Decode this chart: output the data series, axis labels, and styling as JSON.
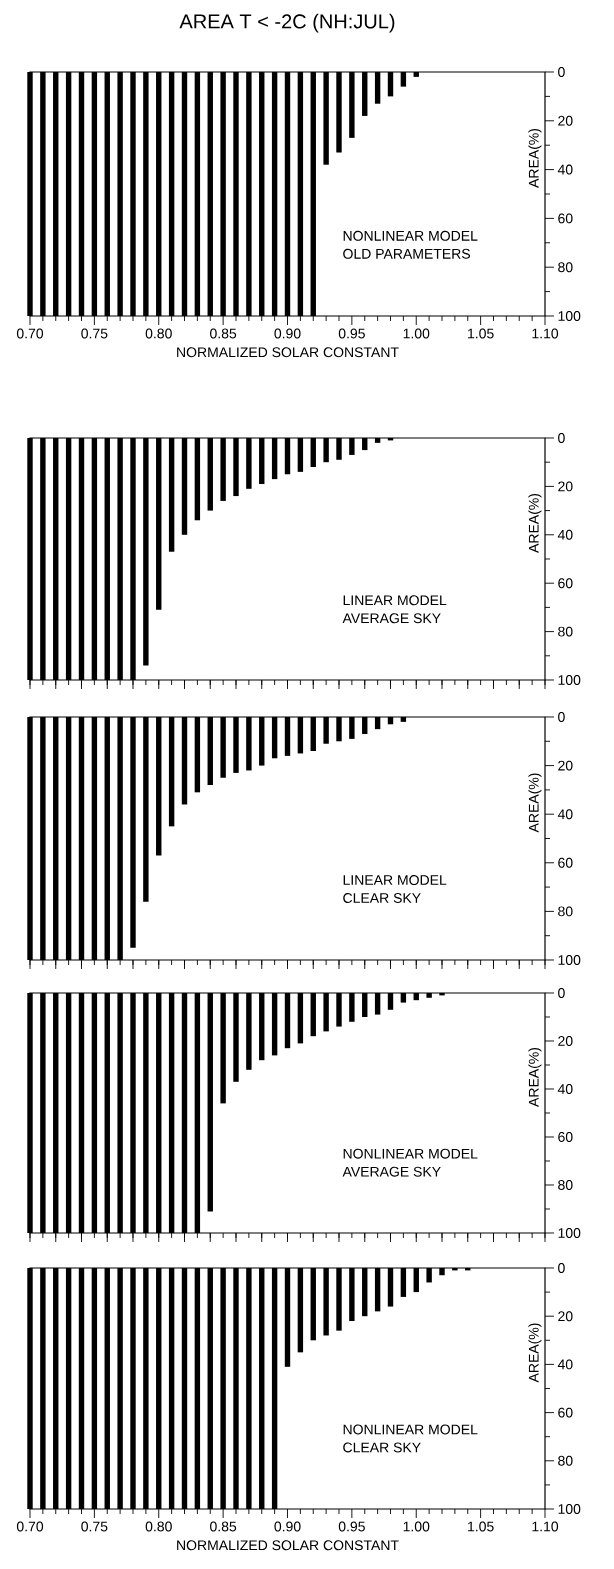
{
  "chart_data": [
    {
      "type": "bar",
      "title": "AREA T < -2C (NH:JUL)",
      "xlabel": "NORMALIZED SOLAR CONSTANT",
      "ylabel": "AREA(%)",
      "color": "#000000",
      "x": [
        0.7,
        0.71,
        0.72,
        0.73,
        0.74,
        0.75,
        0.76,
        0.77,
        0.78,
        0.79,
        0.8,
        0.81,
        0.82,
        0.83,
        0.84,
        0.85,
        0.86,
        0.87,
        0.88,
        0.89,
        0.9,
        0.91,
        0.92,
        0.93,
        0.94,
        0.95,
        0.96,
        0.97,
        0.98,
        0.99,
        1.0
      ],
      "values": [
        100,
        100,
        100,
        100,
        100,
        100,
        100,
        100,
        100,
        100,
        100,
        100,
        100,
        100,
        100,
        100,
        100,
        100,
        100,
        100,
        100,
        100,
        100,
        38,
        33,
        27,
        18,
        13,
        10,
        6,
        2
      ],
      "xlim": [
        0.7,
        1.1
      ],
      "ylim": [
        100,
        0
      ],
      "xticks": [
        {
          "value": 0.7,
          "label": "0.70"
        },
        {
          "value": 0.71,
          "label": null
        },
        {
          "value": 0.72,
          "label": null
        },
        {
          "value": 0.73,
          "label": null
        },
        {
          "value": 0.74,
          "label": null
        },
        {
          "value": 0.75,
          "label": "0.75"
        },
        {
          "value": 0.76,
          "label": null
        },
        {
          "value": 0.77,
          "label": null
        },
        {
          "value": 0.78,
          "label": null
        },
        {
          "value": 0.79,
          "label": null
        },
        {
          "value": 0.8,
          "label": "0.80"
        },
        {
          "value": 0.81,
          "label": null
        },
        {
          "value": 0.82,
          "label": null
        },
        {
          "value": 0.83,
          "label": null
        },
        {
          "value": 0.84,
          "label": null
        },
        {
          "value": 0.85,
          "label": "0.85"
        },
        {
          "value": 0.86,
          "label": null
        },
        {
          "value": 0.87,
          "label": null
        },
        {
          "value": 0.88,
          "label": null
        },
        {
          "value": 0.89,
          "label": null
        },
        {
          "value": 0.9,
          "label": "0.90"
        },
        {
          "value": 0.91,
          "label": null
        },
        {
          "value": 0.92,
          "label": null
        },
        {
          "value": 0.93,
          "label": null
        },
        {
          "value": 0.94,
          "label": null
        },
        {
          "value": 0.95,
          "label": "0.95"
        },
        {
          "value": 0.96,
          "label": null
        },
        {
          "value": 0.97,
          "label": null
        },
        {
          "value": 0.98,
          "label": null
        },
        {
          "value": 0.99,
          "label": null
        },
        {
          "value": 1.0,
          "label": "1.00"
        },
        {
          "value": 1.01,
          "label": null
        },
        {
          "value": 1.02,
          "label": null
        },
        {
          "value": 1.03,
          "label": null
        },
        {
          "value": 1.04,
          "label": null
        },
        {
          "value": 1.05,
          "label": "1.05"
        },
        {
          "value": 1.06,
          "label": null
        },
        {
          "value": 1.07,
          "label": null
        },
        {
          "value": 1.08,
          "label": null
        },
        {
          "value": 1.09,
          "label": null
        },
        {
          "value": 1.1,
          "label": "1.10"
        }
      ],
      "yticks": [
        0,
        {
          "value": 10,
          "label": null
        },
        20,
        {
          "value": 30,
          "label": null
        },
        40,
        {
          "value": 50,
          "label": null
        },
        60,
        {
          "value": 70,
          "label": null
        },
        80,
        {
          "value": 90,
          "label": null
        },
        100
      ],
      "annotations": [
        "NONLINEAR MODEL",
        "OLD PARAMETERS"
      ]
    },
    {
      "type": "bar",
      "ylabel": "AREA(%)",
      "color": "#000000",
      "tick_labels": "y",
      "x": [
        0.7,
        0.71,
        0.72,
        0.73,
        0.74,
        0.75,
        0.76,
        0.77,
        0.78,
        0.79,
        0.8,
        0.81,
        0.82,
        0.83,
        0.84,
        0.85,
        0.86,
        0.87,
        0.88,
        0.89,
        0.9,
        0.91,
        0.92,
        0.93,
        0.94,
        0.95,
        0.96,
        0.97,
        0.98
      ],
      "values": [
        100,
        100,
        100,
        100,
        100,
        100,
        100,
        100,
        100,
        94,
        71,
        47,
        40,
        34,
        30,
        26,
        24,
        21,
        19,
        17,
        15,
        14,
        12,
        10,
        9,
        7,
        5,
        2,
        1
      ],
      "xlim": [
        0.7,
        1.1
      ],
      "ylim": [
        100,
        0
      ],
      "xticks": [
        {
          "value": 0.7,
          "label": null
        },
        {
          "value": 0.71,
          "label": null
        },
        {
          "value": 0.72,
          "label": null
        },
        {
          "value": 0.73,
          "label": null
        },
        {
          "value": 0.74,
          "label": null
        },
        {
          "value": 0.75,
          "label": null
        },
        {
          "value": 0.76,
          "label": null
        },
        {
          "value": 0.77,
          "label": null
        },
        {
          "value": 0.78,
          "label": null
        },
        {
          "value": 0.79,
          "label": null
        },
        {
          "value": 0.8,
          "label": null
        },
        {
          "value": 0.81,
          "label": null
        },
        {
          "value": 0.82,
          "label": null
        },
        {
          "value": 0.83,
          "label": null
        },
        {
          "value": 0.84,
          "label": null
        },
        {
          "value": 0.85,
          "label": null
        },
        {
          "value": 0.86,
          "label": null
        },
        {
          "value": 0.87,
          "label": null
        },
        {
          "value": 0.88,
          "label": null
        },
        {
          "value": 0.89,
          "label": null
        },
        {
          "value": 0.9,
          "label": null
        },
        {
          "value": 0.91,
          "label": null
        },
        {
          "value": 0.92,
          "label": null
        },
        {
          "value": 0.93,
          "label": null
        },
        {
          "value": 0.94,
          "label": null
        },
        {
          "value": 0.95,
          "label": null
        },
        {
          "value": 0.96,
          "label": null
        },
        {
          "value": 0.97,
          "label": null
        },
        {
          "value": 0.98,
          "label": null
        },
        {
          "value": 0.99,
          "label": null
        },
        {
          "value": 1.0,
          "label": null
        },
        {
          "value": 1.01,
          "label": null
        },
        {
          "value": 1.02,
          "label": null
        },
        {
          "value": 1.03,
          "label": null
        },
        {
          "value": 1.04,
          "label": null
        },
        {
          "value": 1.05,
          "label": null
        },
        {
          "value": 1.06,
          "label": null
        },
        {
          "value": 1.07,
          "label": null
        },
        {
          "value": 1.08,
          "label": null
        },
        {
          "value": 1.09,
          "label": null
        },
        {
          "value": 1.1,
          "label": null
        }
      ],
      "yticks": [
        0,
        {
          "value": 10,
          "label": null
        },
        20,
        {
          "value": 30,
          "label": null
        },
        40,
        {
          "value": 50,
          "label": null
        },
        60,
        {
          "value": 70,
          "label": null
        },
        80,
        {
          "value": 90,
          "label": null
        },
        100
      ],
      "annotations": [
        "LINEAR MODEL",
        "AVERAGE SKY"
      ]
    },
    {
      "type": "bar",
      "ylabel": "AREA(%)",
      "color": "#000000",
      "tick_labels": "y",
      "x": [
        0.7,
        0.71,
        0.72,
        0.73,
        0.74,
        0.75,
        0.76,
        0.77,
        0.78,
        0.79,
        0.8,
        0.81,
        0.82,
        0.83,
        0.84,
        0.85,
        0.86,
        0.87,
        0.88,
        0.89,
        0.9,
        0.91,
        0.92,
        0.93,
        0.94,
        0.95,
        0.96,
        0.97,
        0.98,
        0.99
      ],
      "values": [
        100,
        100,
        100,
        100,
        100,
        100,
        100,
        100,
        95,
        76,
        57,
        45,
        36,
        31,
        28,
        25,
        23,
        22,
        20,
        17,
        16,
        15,
        14,
        11,
        10,
        9,
        7,
        5,
        3,
        2
      ],
      "xlim": [
        0.7,
        1.1
      ],
      "ylim": [
        100,
        0
      ],
      "xticks": [
        {
          "value": 0.7,
          "label": null
        },
        {
          "value": 0.71,
          "label": null
        },
        {
          "value": 0.72,
          "label": null
        },
        {
          "value": 0.73,
          "label": null
        },
        {
          "value": 0.74,
          "label": null
        },
        {
          "value": 0.75,
          "label": null
        },
        {
          "value": 0.76,
          "label": null
        },
        {
          "value": 0.77,
          "label": null
        },
        {
          "value": 0.78,
          "label": null
        },
        {
          "value": 0.79,
          "label": null
        },
        {
          "value": 0.8,
          "label": null
        },
        {
          "value": 0.81,
          "label": null
        },
        {
          "value": 0.82,
          "label": null
        },
        {
          "value": 0.83,
          "label": null
        },
        {
          "value": 0.84,
          "label": null
        },
        {
          "value": 0.85,
          "label": null
        },
        {
          "value": 0.86,
          "label": null
        },
        {
          "value": 0.87,
          "label": null
        },
        {
          "value": 0.88,
          "label": null
        },
        {
          "value": 0.89,
          "label": null
        },
        {
          "value": 0.9,
          "label": null
        },
        {
          "value": 0.91,
          "label": null
        },
        {
          "value": 0.92,
          "label": null
        },
        {
          "value": 0.93,
          "label": null
        },
        {
          "value": 0.94,
          "label": null
        },
        {
          "value": 0.95,
          "label": null
        },
        {
          "value": 0.96,
          "label": null
        },
        {
          "value": 0.97,
          "label": null
        },
        {
          "value": 0.98,
          "label": null
        },
        {
          "value": 0.99,
          "label": null
        },
        {
          "value": 1.0,
          "label": null
        },
        {
          "value": 1.01,
          "label": null
        },
        {
          "value": 1.02,
          "label": null
        },
        {
          "value": 1.03,
          "label": null
        },
        {
          "value": 1.04,
          "label": null
        },
        {
          "value": 1.05,
          "label": null
        },
        {
          "value": 1.06,
          "label": null
        },
        {
          "value": 1.07,
          "label": null
        },
        {
          "value": 1.08,
          "label": null
        },
        {
          "value": 1.09,
          "label": null
        },
        {
          "value": 1.1,
          "label": null
        }
      ],
      "yticks": [
        0,
        {
          "value": 10,
          "label": null
        },
        20,
        {
          "value": 30,
          "label": null
        },
        40,
        {
          "value": 50,
          "label": null
        },
        60,
        {
          "value": 70,
          "label": null
        },
        80,
        {
          "value": 90,
          "label": null
        },
        100
      ],
      "annotations": [
        "LINEAR MODEL",
        "CLEAR SKY"
      ]
    },
    {
      "type": "bar",
      "ylabel": "AREA(%)",
      "color": "#000000",
      "tick_labels": "y",
      "x": [
        0.7,
        0.71,
        0.72,
        0.73,
        0.74,
        0.75,
        0.76,
        0.77,
        0.78,
        0.79,
        0.8,
        0.81,
        0.82,
        0.83,
        0.84,
        0.85,
        0.86,
        0.87,
        0.88,
        0.89,
        0.9,
        0.91,
        0.92,
        0.93,
        0.94,
        0.95,
        0.96,
        0.97,
        0.98,
        0.99,
        1.0,
        1.01,
        1.02
      ],
      "values": [
        100,
        100,
        100,
        100,
        100,
        100,
        100,
        100,
        100,
        100,
        100,
        100,
        100,
        100,
        91,
        46,
        37,
        32,
        28,
        26,
        23,
        21,
        18,
        16,
        14,
        12,
        10,
        9,
        7,
        4,
        3,
        2,
        1
      ],
      "xlim": [
        0.7,
        1.1
      ],
      "ylim": [
        100,
        0
      ],
      "xticks": [
        {
          "value": 0.7,
          "label": null
        },
        {
          "value": 0.71,
          "label": null
        },
        {
          "value": 0.72,
          "label": null
        },
        {
          "value": 0.73,
          "label": null
        },
        {
          "value": 0.74,
          "label": null
        },
        {
          "value": 0.75,
          "label": null
        },
        {
          "value": 0.76,
          "label": null
        },
        {
          "value": 0.77,
          "label": null
        },
        {
          "value": 0.78,
          "label": null
        },
        {
          "value": 0.79,
          "label": null
        },
        {
          "value": 0.8,
          "label": null
        },
        {
          "value": 0.81,
          "label": null
        },
        {
          "value": 0.82,
          "label": null
        },
        {
          "value": 0.83,
          "label": null
        },
        {
          "value": 0.84,
          "label": null
        },
        {
          "value": 0.85,
          "label": null
        },
        {
          "value": 0.86,
          "label": null
        },
        {
          "value": 0.87,
          "label": null
        },
        {
          "value": 0.88,
          "label": null
        },
        {
          "value": 0.89,
          "label": null
        },
        {
          "value": 0.9,
          "label": null
        },
        {
          "value": 0.91,
          "label": null
        },
        {
          "value": 0.92,
          "label": null
        },
        {
          "value": 0.93,
          "label": null
        },
        {
          "value": 0.94,
          "label": null
        },
        {
          "value": 0.95,
          "label": null
        },
        {
          "value": 0.96,
          "label": null
        },
        {
          "value": 0.97,
          "label": null
        },
        {
          "value": 0.98,
          "label": null
        },
        {
          "value": 0.99,
          "label": null
        },
        {
          "value": 1.0,
          "label": null
        },
        {
          "value": 1.01,
          "label": null
        },
        {
          "value": 1.02,
          "label": null
        },
        {
          "value": 1.03,
          "label": null
        },
        {
          "value": 1.04,
          "label": null
        },
        {
          "value": 1.05,
          "label": null
        },
        {
          "value": 1.06,
          "label": null
        },
        {
          "value": 1.07,
          "label": null
        },
        {
          "value": 1.08,
          "label": null
        },
        {
          "value": 1.09,
          "label": null
        },
        {
          "value": 1.1,
          "label": null
        }
      ],
      "yticks": [
        0,
        {
          "value": 10,
          "label": null
        },
        20,
        {
          "value": 30,
          "label": null
        },
        40,
        {
          "value": 50,
          "label": null
        },
        60,
        {
          "value": 70,
          "label": null
        },
        80,
        {
          "value": 90,
          "label": null
        },
        100
      ],
      "annotations": [
        "NONLINEAR MODEL",
        "AVERAGE SKY"
      ]
    },
    {
      "type": "bar",
      "xlabel": "NORMALIZED SOLAR CONSTANT",
      "ylabel": "AREA(%)",
      "color": "#000000",
      "x": [
        0.7,
        0.71,
        0.72,
        0.73,
        0.74,
        0.75,
        0.76,
        0.77,
        0.78,
        0.79,
        0.8,
        0.81,
        0.82,
        0.83,
        0.84,
        0.85,
        0.86,
        0.87,
        0.88,
        0.89,
        0.9,
        0.91,
        0.92,
        0.93,
        0.94,
        0.95,
        0.96,
        0.97,
        0.98,
        0.99,
        1.0,
        1.01,
        1.02,
        1.03,
        1.04
      ],
      "values": [
        100,
        100,
        100,
        100,
        100,
        100,
        100,
        100,
        100,
        100,
        100,
        100,
        100,
        100,
        100,
        100,
        100,
        100,
        100,
        100,
        41,
        35,
        30,
        28,
        26,
        22,
        20,
        18,
        16,
        12,
        10,
        6,
        3,
        1,
        1
      ],
      "xlim": [
        0.7,
        1.1
      ],
      "ylim": [
        100,
        0
      ],
      "xticks": [
        {
          "value": 0.7,
          "label": "0.70"
        },
        {
          "value": 0.71,
          "label": null
        },
        {
          "value": 0.72,
          "label": null
        },
        {
          "value": 0.73,
          "label": null
        },
        {
          "value": 0.74,
          "label": null
        },
        {
          "value": 0.75,
          "label": "0.75"
        },
        {
          "value": 0.76,
          "label": null
        },
        {
          "value": 0.77,
          "label": null
        },
        {
          "value": 0.78,
          "label": null
        },
        {
          "value": 0.79,
          "label": null
        },
        {
          "value": 0.8,
          "label": "0.80"
        },
        {
          "value": 0.81,
          "label": null
        },
        {
          "value": 0.82,
          "label": null
        },
        {
          "value": 0.83,
          "label": null
        },
        {
          "value": 0.84,
          "label": null
        },
        {
          "value": 0.85,
          "label": "0.85"
        },
        {
          "value": 0.86,
          "label": null
        },
        {
          "value": 0.87,
          "label": null
        },
        {
          "value": 0.88,
          "label": null
        },
        {
          "value": 0.89,
          "label": null
        },
        {
          "value": 0.9,
          "label": "0.90"
        },
        {
          "value": 0.91,
          "label": null
        },
        {
          "value": 0.92,
          "label": null
        },
        {
          "value": 0.93,
          "label": null
        },
        {
          "value": 0.94,
          "label": null
        },
        {
          "value": 0.95,
          "label": "0.95"
        },
        {
          "value": 0.96,
          "label": null
        },
        {
          "value": 0.97,
          "label": null
        },
        {
          "value": 0.98,
          "label": null
        },
        {
          "value": 0.99,
          "label": null
        },
        {
          "value": 1.0,
          "label": "1.00"
        },
        {
          "value": 1.01,
          "label": null
        },
        {
          "value": 1.02,
          "label": null
        },
        {
          "value": 1.03,
          "label": null
        },
        {
          "value": 1.04,
          "label": null
        },
        {
          "value": 1.05,
          "label": "1.05"
        },
        {
          "value": 1.06,
          "label": null
        },
        {
          "value": 1.07,
          "label": null
        },
        {
          "value": 1.08,
          "label": null
        },
        {
          "value": 1.09,
          "label": null
        },
        {
          "value": 1.1,
          "label": "1.10"
        }
      ],
      "yticks": [
        0,
        {
          "value": 10,
          "label": null
        },
        20,
        {
          "value": 30,
          "label": null
        },
        40,
        {
          "value": 50,
          "label": null
        },
        60,
        {
          "value": 70,
          "label": null
        },
        80,
        {
          "value": 90,
          "label": null
        },
        100
      ],
      "annotations": [
        "NONLINEAR MODEL",
        "CLEAR SKY"
      ]
    }
  ]
}
